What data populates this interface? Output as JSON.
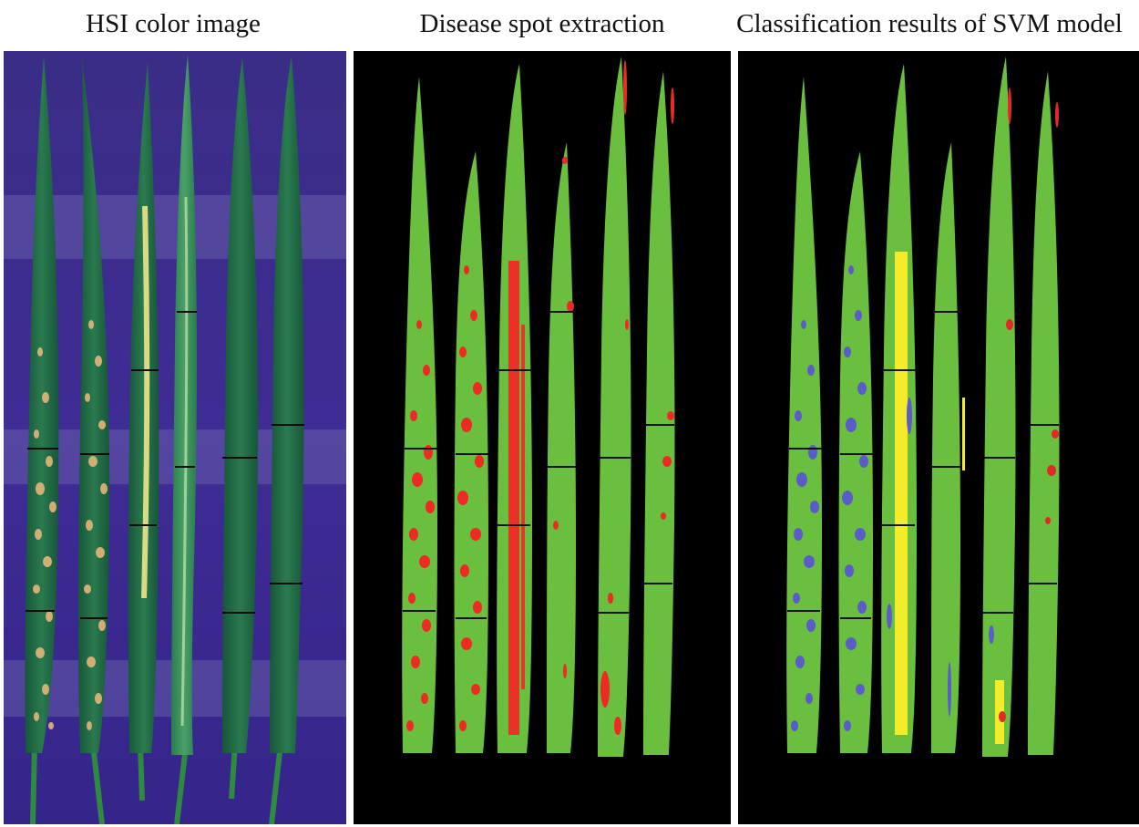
{
  "figure": {
    "panels": [
      {
        "id": "hsi",
        "title": "HSI color image"
      },
      {
        "id": "extraction",
        "title": "Disease spot extraction"
      },
      {
        "id": "svm",
        "title": "Classification results of SVM model"
      }
    ]
  },
  "colors": {
    "hsi_background": "#3b2a8e",
    "hsi_leaf": "#1f6b45",
    "hsi_lesion": "#e0b27a",
    "hsi_stripe": "#e9e27a",
    "mask_background": "#000000",
    "healthy_leaf": "#6bbf3f",
    "disease_spot": "#ee2a24",
    "svm_class_blue": "#5b5cc8",
    "svm_class_yellow": "#f2ec2a",
    "svm_class_red": "#e3282a"
  },
  "leaves_per_panel": 6
}
